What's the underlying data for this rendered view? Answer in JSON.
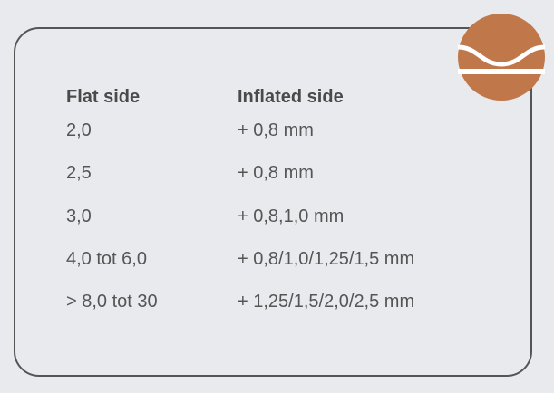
{
  "table": {
    "headers": [
      "Flat side",
      "Inflated side"
    ],
    "rows": [
      [
        "2,0",
        "+ 0,8 mm"
      ],
      [
        "2,5",
        "+ 0,8 mm"
      ],
      [
        "3,0",
        "+ 0,8,1,0 mm"
      ],
      [
        "4,0 tot 6,0",
        "+ 0,8/1,0/1,25/1,5 mm"
      ],
      [
        "> 8,0 tot 30",
        "+ 1,25/1,5/2,0/2,5 mm"
      ]
    ]
  },
  "icon": {
    "name": "inflated-side-profile-icon",
    "color": "#c0774a"
  }
}
